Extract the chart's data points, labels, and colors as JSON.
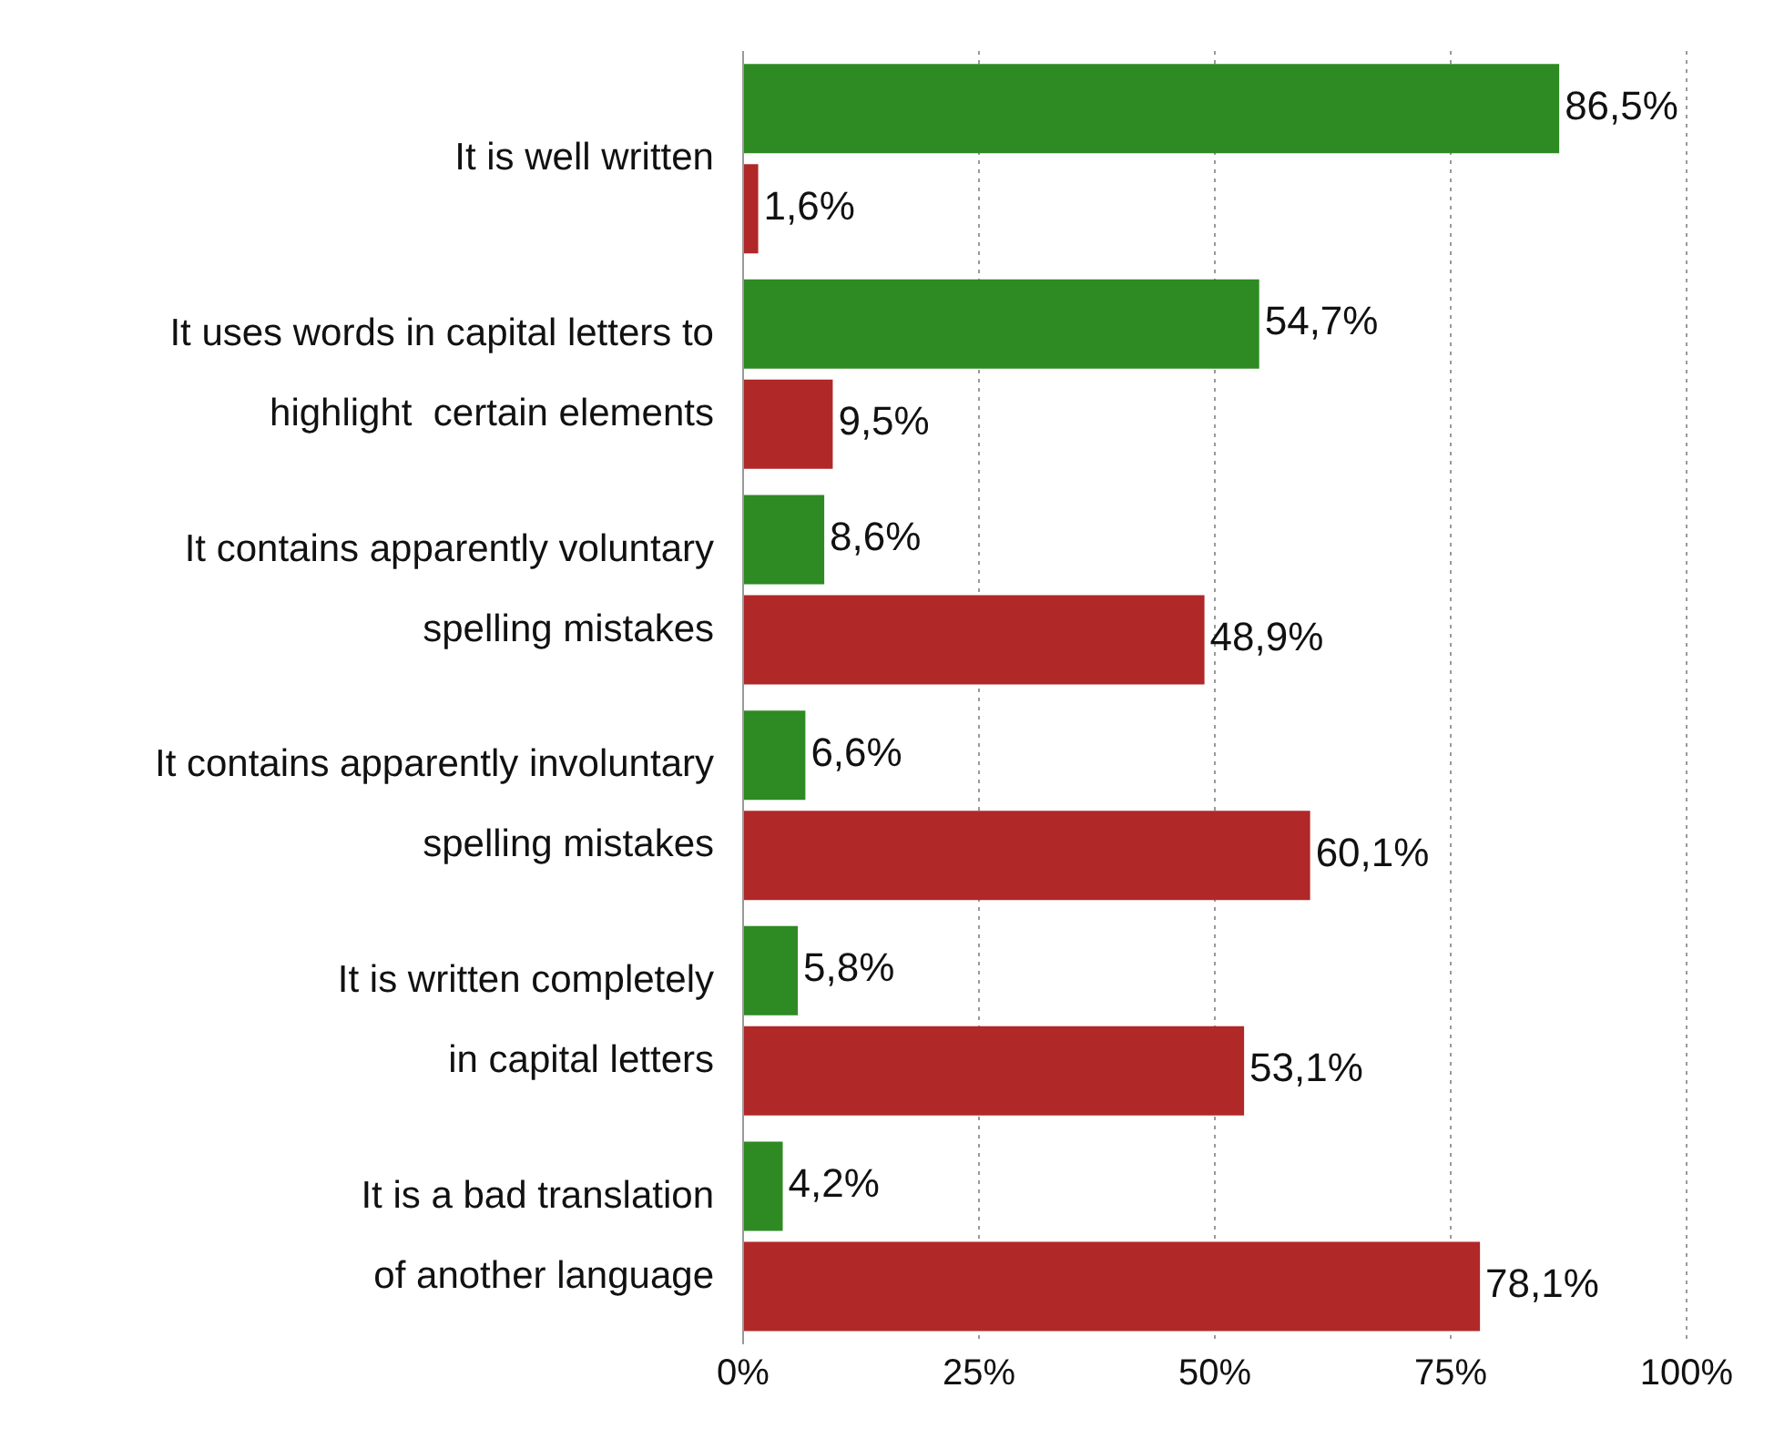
{
  "chart_data": {
    "type": "bar",
    "orientation": "horizontal",
    "categories": [
      "It is well written",
      "It uses words in capital letters to\nhighlight  certain elements",
      "It contains apparently voluntary\nspelling mistakes",
      "It contains apparently involuntary\nspelling mistakes",
      "It is written completely\nin capital letters",
      "It is a bad translation\nof another language"
    ],
    "series": [
      {
        "color": "#2e8a22",
        "values": [
          86.5,
          54.7,
          8.6,
          6.6,
          5.8,
          4.2
        ],
        "value_labels": [
          "86,5%",
          "54,7%",
          "8,6%",
          "6,6%",
          "5,8%",
          "4,2%"
        ]
      },
      {
        "color": "#b02828",
        "values": [
          1.6,
          9.5,
          48.9,
          60.1,
          53.1,
          78.1
        ],
        "value_labels": [
          "1,6%",
          "9,5%",
          "48,9%",
          "60,1%",
          "53,1%",
          "78,1%"
        ]
      }
    ],
    "xlim": [
      0,
      100
    ],
    "xticks": [
      {
        "value": 0,
        "label": "0%"
      },
      {
        "value": 25,
        "label": "25%"
      },
      {
        "value": 50,
        "label": "50%"
      },
      {
        "value": 75,
        "label": "75%"
      },
      {
        "value": 100,
        "label": "100%"
      }
    ],
    "grid": "x"
  }
}
